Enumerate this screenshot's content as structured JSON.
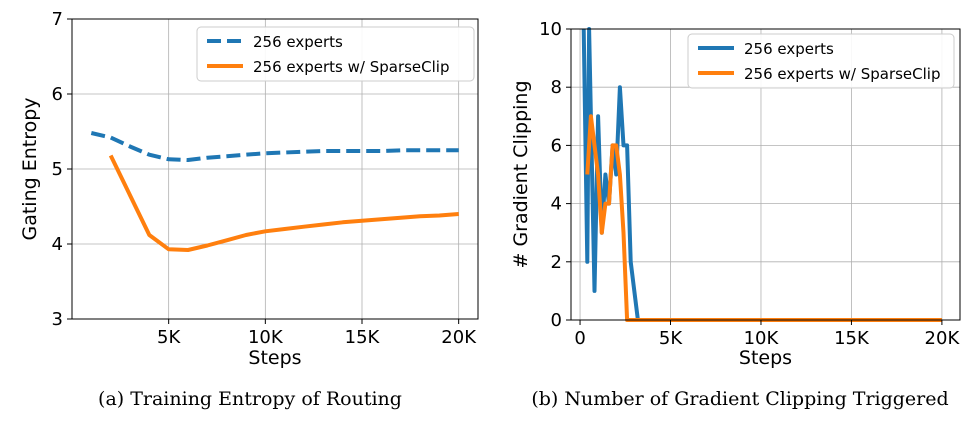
{
  "chart_data": [
    {
      "type": "line",
      "panel_caption": "(a) Training Entropy of Routing",
      "xlabel": "Steps",
      "ylabel": "Gating Entropy",
      "xlim": [
        0,
        21000
      ],
      "ylim": [
        3,
        7
      ],
      "xticks": [
        5000,
        10000,
        15000,
        20000
      ],
      "xtick_labels": [
        "5K",
        "10K",
        "15K",
        "20K"
      ],
      "yticks": [
        3,
        4,
        5,
        6,
        7
      ],
      "ytick_labels": [
        "3",
        "4",
        "5",
        "6",
        "7"
      ],
      "grid": true,
      "legend_position": "top-right",
      "series": [
        {
          "name": "256 experts",
          "color": "#1f77b4",
          "dash": true,
          "x": [
            1000,
            2000,
            3000,
            4000,
            5000,
            6000,
            7000,
            8000,
            9000,
            10000,
            11000,
            12000,
            13000,
            14000,
            15000,
            16000,
            17000,
            18000,
            19000,
            20000
          ],
          "y": [
            5.48,
            5.42,
            5.3,
            5.19,
            5.13,
            5.12,
            5.15,
            5.17,
            5.19,
            5.21,
            5.22,
            5.23,
            5.24,
            5.24,
            5.24,
            5.24,
            5.25,
            5.25,
            5.25,
            5.25
          ]
        },
        {
          "name": "256 experts w/ SparseClip",
          "color": "#ff7f0e",
          "dash": false,
          "x": [
            2000,
            3000,
            4000,
            5000,
            6000,
            7000,
            8000,
            9000,
            10000,
            11000,
            12000,
            13000,
            14000,
            15000,
            16000,
            17000,
            18000,
            19000,
            20000
          ],
          "y": [
            5.18,
            4.65,
            4.12,
            3.93,
            3.92,
            3.98,
            4.05,
            4.12,
            4.17,
            4.2,
            4.23,
            4.26,
            4.29,
            4.31,
            4.33,
            4.35,
            4.37,
            4.38,
            4.4
          ]
        }
      ]
    },
    {
      "type": "line",
      "panel_caption": "(b) Number of Gradient Clipping Triggered",
      "xlabel": "Steps",
      "ylabel": "# Gradient Clipping",
      "xlim": [
        -500,
        21000
      ],
      "ylim": [
        0,
        10
      ],
      "xticks": [
        0,
        5000,
        10000,
        15000,
        20000
      ],
      "xtick_labels": [
        "0",
        "5K",
        "10K",
        "15K",
        "20K"
      ],
      "yticks": [
        0,
        2,
        4,
        6,
        8,
        10
      ],
      "ytick_labels": [
        "0",
        "2",
        "4",
        "6",
        "8",
        "10"
      ],
      "grid": true,
      "legend_position": "top-right",
      "series": [
        {
          "name": "256 experts",
          "color": "#1f77b4",
          "dash": false,
          "x": [
            200,
            400,
            500,
            600,
            800,
            1000,
            1200,
            1400,
            1600,
            1800,
            2000,
            2200,
            2400,
            2600,
            2800,
            3000,
            3200,
            5000,
            10000,
            15000,
            20000
          ],
          "y": [
            10,
            2,
            10,
            7,
            1,
            7,
            3,
            5,
            4,
            6,
            5,
            8,
            6,
            6,
            2,
            1,
            0,
            0,
            0,
            0,
            0
          ]
        },
        {
          "name": "256 experts w/ SparseClip",
          "color": "#ff7f0e",
          "dash": false,
          "x": [
            400,
            600,
            800,
            1000,
            1200,
            1400,
            1600,
            1800,
            2000,
            2200,
            2400,
            2600,
            5000,
            10000,
            15000,
            20000
          ],
          "y": [
            5,
            7,
            6,
            5,
            3,
            4,
            4,
            6,
            6,
            5,
            3,
            0,
            0,
            0,
            0,
            0
          ]
        }
      ]
    }
  ]
}
